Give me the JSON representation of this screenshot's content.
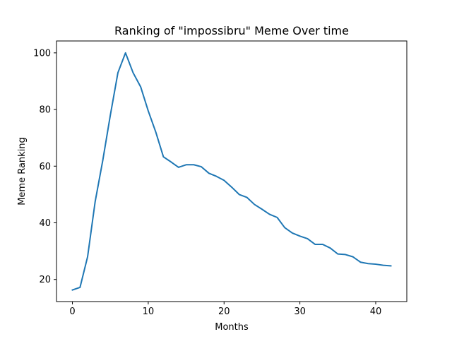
{
  "chart_data": {
    "type": "line",
    "title": "Ranking of \"impossibru\" Meme Over time",
    "xlabel": "Months",
    "ylabel": "Meme Ranking",
    "xlim": [
      -2.1,
      44.1
    ],
    "ylim": [
      12.2,
      104.2
    ],
    "xticks": [
      0,
      10,
      20,
      30,
      40
    ],
    "yticks": [
      20,
      40,
      60,
      80,
      100
    ],
    "grid": false,
    "line_color": "#1f77b4",
    "series": [
      {
        "x": [
          0,
          1,
          2,
          3,
          4,
          5,
          6,
          7,
          8,
          9,
          10,
          11,
          12,
          13,
          14,
          15,
          16,
          17,
          18,
          19,
          20,
          21,
          22,
          23,
          24,
          25,
          26,
          27,
          28,
          29,
          30,
          31,
          32,
          33,
          34,
          35,
          36,
          37,
          38,
          39,
          40,
          41,
          42
        ],
        "values": [
          16.3,
          17.2,
          28.0,
          47.5,
          62.0,
          78.0,
          93.0,
          100.0,
          93.0,
          88.0,
          79.5,
          72.0,
          63.3,
          61.5,
          59.6,
          60.5,
          60.5,
          59.8,
          57.5,
          56.4,
          55.0,
          52.6,
          50.0,
          49.0,
          46.5,
          44.8,
          43.0,
          41.9,
          38.3,
          36.4,
          35.3,
          34.4,
          32.4,
          32.4,
          31.1,
          29.0,
          28.8,
          28.0,
          26.1,
          25.6,
          25.4,
          25.0,
          24.8
        ]
      }
    ]
  }
}
